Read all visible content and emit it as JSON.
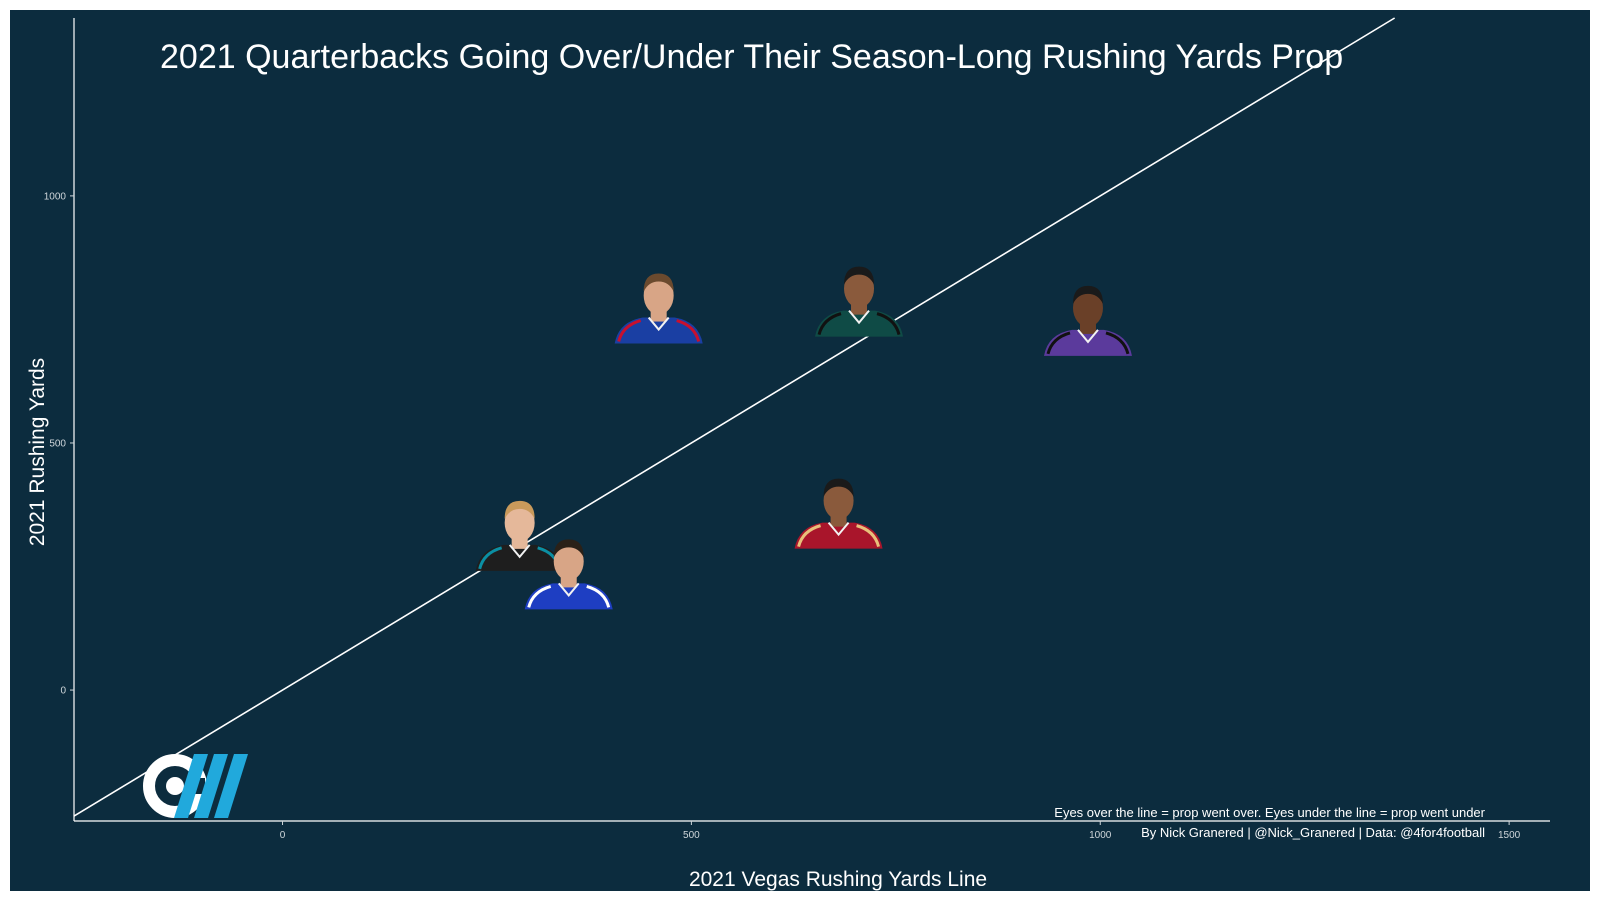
{
  "chart_data": {
    "type": "scatter",
    "title": "2021 Quarterbacks Going Over/Under Their Season-Long Rushing Yards Prop",
    "xlabel": "2021 Vegas Rushing Yards Line",
    "ylabel": "2021 Rushing Yards",
    "xlim": [
      -255,
      1550
    ],
    "ylim": [
      -265,
      1360
    ],
    "xticks": [
      0,
      500,
      1000,
      1500
    ],
    "yticks": [
      0,
      500,
      1000
    ],
    "reference_line": "y = x",
    "grid": false,
    "points": [
      {
        "x": 460,
        "y": 770,
        "jersey": "#1a3fa3",
        "trim": "#c8102e",
        "skin": "#d8a586",
        "hair": "#6b4a2e"
      },
      {
        "x": 705,
        "y": 784,
        "jersey": "#0f4b46",
        "trim": "#111111",
        "skin": "#8a5a3c",
        "hair": "#1a1a1a"
      },
      {
        "x": 985,
        "y": 745,
        "jersey": "#5b3a9c",
        "trim": "#111111",
        "skin": "#6a4028",
        "hair": "#1a1a1a"
      },
      {
        "x": 680,
        "y": 355,
        "jersey": "#a9152b",
        "trim": "#e8c07a",
        "skin": "#8a5a3c",
        "hair": "#1a1a1a"
      },
      {
        "x": 290,
        "y": 310,
        "jersey": "#1e1e1e",
        "trim": "#0b8fa3",
        "skin": "#e5b89a",
        "hair": "#c99a5b"
      },
      {
        "x": 350,
        "y": 232,
        "jersey": "#1e3ec2",
        "trim": "#ffffff",
        "skin": "#d8a586",
        "hair": "#2a2118"
      }
    ]
  },
  "captions": {
    "line1": "Eyes over the line = prop went over. Eyes under the line = prop went under",
    "line2": "By Nick Granered | @Nick_Granered | Data: @4for4football"
  },
  "colors": {
    "background": "#0c2c3e",
    "axis": "#ffffff",
    "logo_white": "#ffffff",
    "logo_blue": "#21a9dc"
  },
  "logo": "4for4-logo"
}
